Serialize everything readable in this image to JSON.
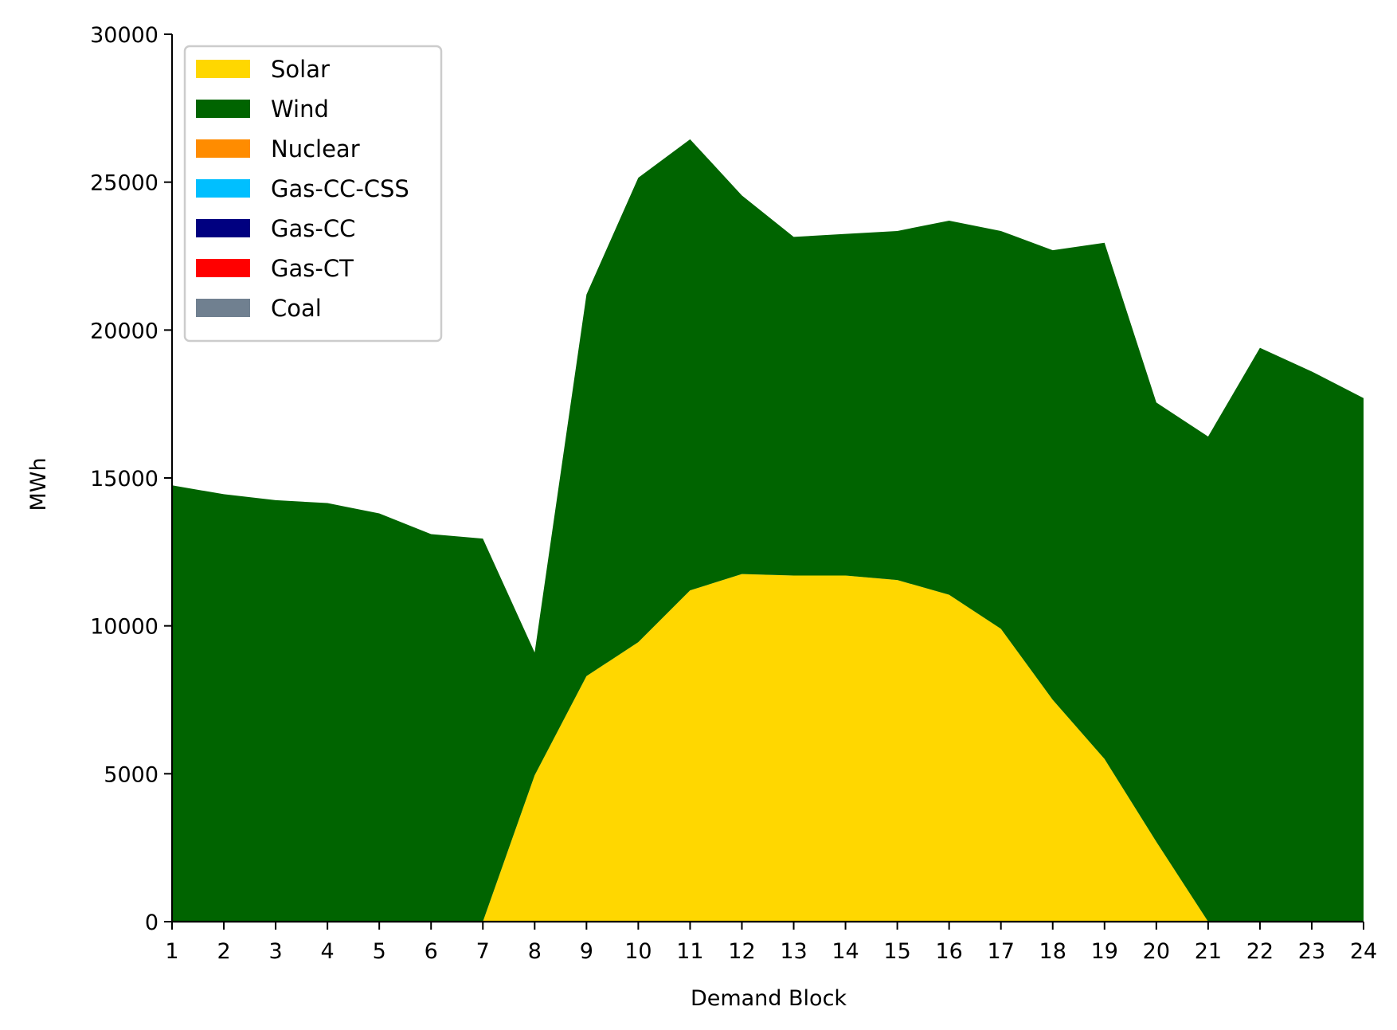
{
  "chart_data": {
    "type": "area",
    "stacked": true,
    "xlabel": "Demand Block",
    "ylabel": "MWh",
    "x": [
      1,
      2,
      3,
      4,
      5,
      6,
      7,
      8,
      9,
      10,
      11,
      12,
      13,
      14,
      15,
      16,
      17,
      18,
      19,
      20,
      21,
      22,
      23,
      24
    ],
    "xlim": [
      1,
      24
    ],
    "ylim": [
      0,
      30000
    ],
    "yticks": [
      0,
      5000,
      10000,
      15000,
      20000,
      25000,
      30000
    ],
    "grid": false,
    "legend_position": "top-left",
    "series": [
      {
        "name": "Solar",
        "color": "#ffd700",
        "values": [
          0,
          0,
          0,
          0,
          0,
          0,
          0,
          4950,
          8300,
          9450,
          11200,
          11750,
          11700,
          11700,
          11550,
          11050,
          9900,
          7500,
          5500,
          2700,
          0,
          0,
          0,
          0
        ]
      },
      {
        "name": "Wind",
        "color": "#006400",
        "values": [
          14750,
          14450,
          14250,
          14150,
          13800,
          13100,
          12950,
          4150,
          12900,
          15700,
          15250,
          12800,
          11450,
          11550,
          11800,
          12650,
          13450,
          15200,
          17450,
          14850,
          16400,
          19400,
          18600,
          17700
        ]
      },
      {
        "name": "Nuclear",
        "color": "#ff8c00",
        "values": [
          0,
          0,
          0,
          0,
          0,
          0,
          0,
          0,
          0,
          0,
          0,
          0,
          0,
          0,
          0,
          0,
          0,
          0,
          0,
          0,
          0,
          0,
          0,
          0
        ]
      },
      {
        "name": "Gas-CC-CSS",
        "color": "#00bfff",
        "values": [
          0,
          0,
          0,
          0,
          0,
          0,
          0,
          0,
          0,
          0,
          0,
          0,
          0,
          0,
          0,
          0,
          0,
          0,
          0,
          0,
          0,
          0,
          0,
          0
        ]
      },
      {
        "name": "Gas-CC",
        "color": "#000080",
        "values": [
          0,
          0,
          0,
          0,
          0,
          0,
          0,
          0,
          0,
          0,
          0,
          0,
          0,
          0,
          0,
          0,
          0,
          0,
          0,
          0,
          0,
          0,
          0,
          0
        ]
      },
      {
        "name": "Gas-CT",
        "color": "#ff0000",
        "values": [
          0,
          0,
          0,
          0,
          0,
          0,
          0,
          0,
          0,
          0,
          0,
          0,
          0,
          0,
          0,
          0,
          0,
          0,
          0,
          0,
          0,
          0,
          0,
          0
        ]
      },
      {
        "name": "Coal",
        "color": "#708090",
        "values": [
          0,
          0,
          0,
          0,
          0,
          0,
          0,
          0,
          0,
          0,
          0,
          0,
          0,
          0,
          0,
          0,
          0,
          0,
          0,
          0,
          0,
          0,
          0,
          0
        ]
      }
    ]
  }
}
